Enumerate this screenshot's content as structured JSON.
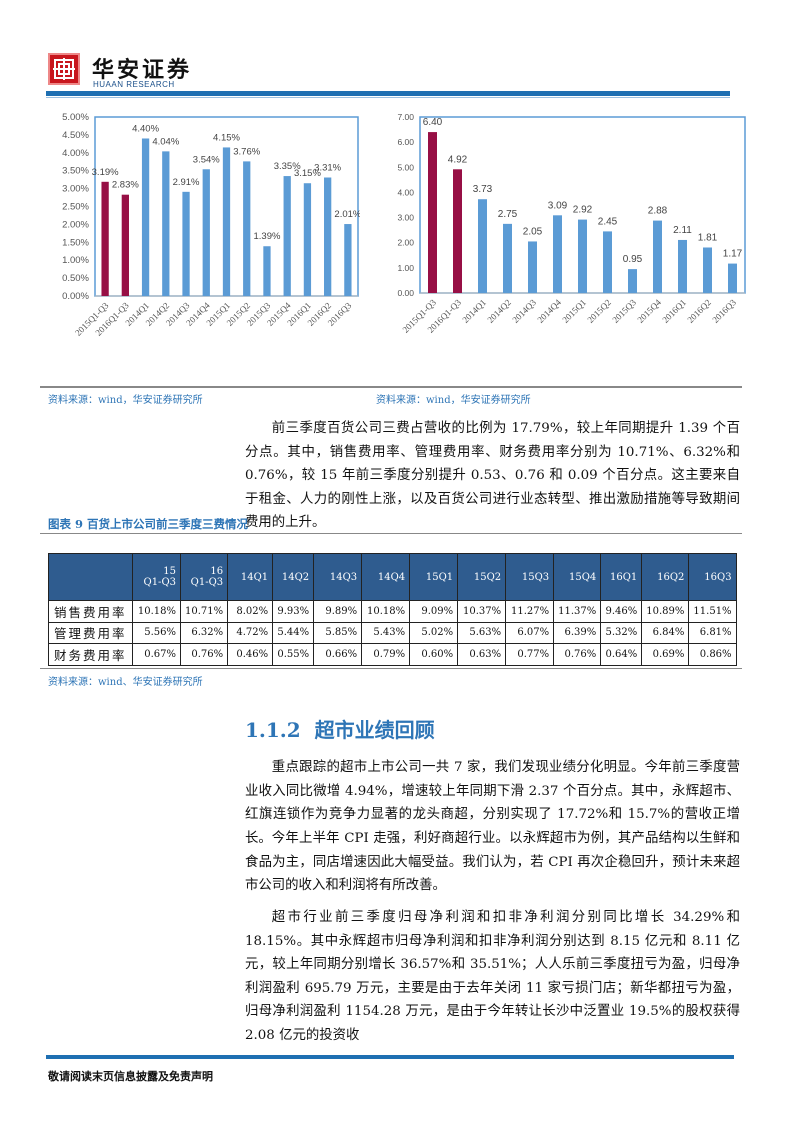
{
  "header": {
    "logo_cn": "华安证券",
    "logo_en": "HUAAN RESEARCH"
  },
  "chart_data": [
    {
      "type": "bar",
      "title": "",
      "ylabel": "",
      "xlabel": "",
      "ylim": [
        0,
        5
      ],
      "yticks": [
        "0.00%",
        "0.50%",
        "1.00%",
        "1.50%",
        "2.00%",
        "2.50%",
        "3.00%",
        "3.50%",
        "4.00%",
        "4.50%",
        "5.00%"
      ],
      "categories": [
        "2015Q1-Q3",
        "2016Q1-Q3",
        "2014Q1",
        "2014Q2",
        "2014Q3",
        "2014Q4",
        "2015Q1",
        "2015Q2",
        "2015Q3",
        "2015Q4",
        "2016Q1",
        "2016Q2",
        "2016Q3"
      ],
      "values": [
        3.19,
        2.83,
        4.4,
        4.04,
        2.91,
        3.54,
        4.15,
        3.76,
        1.39,
        3.35,
        3.15,
        3.31,
        2.01
      ],
      "labels": [
        "3.19%",
        "2.83%",
        "4.40%",
        "4.04%",
        "2.91%",
        "3.54%",
        "4.15%",
        "3.76%",
        "1.39%",
        "3.35%",
        "3.15%",
        "3.31%",
        "2.01%"
      ],
      "colors": [
        "#970f45",
        "#970f45",
        "#5b9bd5",
        "#5b9bd5",
        "#5b9bd5",
        "#5b9bd5",
        "#5b9bd5",
        "#5b9bd5",
        "#5b9bd5",
        "#5b9bd5",
        "#5b9bd5",
        "#5b9bd5",
        "#5b9bd5"
      ]
    },
    {
      "type": "bar",
      "title": "",
      "ylabel": "",
      "xlabel": "",
      "ylim": [
        0,
        7
      ],
      "yticks": [
        "0.00",
        "1.00",
        "2.00",
        "3.00",
        "4.00",
        "5.00",
        "6.00",
        "7.00"
      ],
      "categories": [
        "2015Q1-Q3",
        "2016Q1-Q3",
        "2014Q1",
        "2014Q2",
        "2014Q3",
        "2014Q4",
        "2015Q1",
        "2015Q2",
        "2015Q3",
        "2015Q4",
        "2016Q1",
        "2016Q2",
        "2016Q3"
      ],
      "values": [
        6.4,
        4.92,
        3.73,
        2.75,
        2.05,
        3.09,
        2.92,
        2.45,
        0.95,
        2.88,
        2.11,
        1.81,
        1.17
      ],
      "labels": [
        "6.40",
        "4.92",
        "3.73",
        "2.75",
        "2.05",
        "3.09",
        "2.92",
        "2.45",
        "0.95",
        "2.88",
        "2.11",
        "1.81",
        "1.17"
      ],
      "colors": [
        "#970f45",
        "#970f45",
        "#5b9bd5",
        "#5b9bd5",
        "#5b9bd5",
        "#5b9bd5",
        "#5b9bd5",
        "#5b9bd5",
        "#5b9bd5",
        "#5b9bd5",
        "#5b9bd5",
        "#5b9bd5",
        "#5b9bd5"
      ]
    }
  ],
  "sources": {
    "left": "资料来源：wind，华安证券研究所",
    "right": "资料来源：wind，华安证券研究所",
    "table": "资料来源：wind、华安证券研究所"
  },
  "para1": "前三季度百货公司三费占营收的比例为 17.79%，较上年同期提升 1.39 个百分点。其中，销售费用率、管理费用率、财务费用率分别为 10.71%、6.32%和 0.76%，较 15 年前三季度分别提升 0.53、0.76 和 0.09 个百分点。这主要来自于租金、人力的刚性上涨，以及百货公司进行业态转型、推出激励措施等导致期间费用的上升。",
  "table": {
    "title": "图表 9  百货上市公司前三季度三费情况",
    "headers": [
      "",
      "15 Q1-Q3",
      "16 Q1-Q3",
      "14Q1",
      "14Q2",
      "14Q3",
      "14Q4",
      "15Q1",
      "15Q2",
      "15Q3",
      "15Q4",
      "16Q1",
      "16Q2",
      "16Q3"
    ],
    "rows": [
      [
        "销售费用率",
        "10.18%",
        "10.71%",
        "8.02%",
        "9.93%",
        "9.89%",
        "10.18%",
        "9.09%",
        "10.37%",
        "11.27%",
        "11.37%",
        "9.46%",
        "10.89%",
        "11.51%"
      ],
      [
        "管理费用率",
        "5.56%",
        "6.32%",
        "4.72%",
        "5.44%",
        "5.85%",
        "5.43%",
        "5.02%",
        "5.63%",
        "6.07%",
        "6.39%",
        "5.32%",
        "6.84%",
        "6.81%"
      ],
      [
        "财务费用率",
        "0.67%",
        "0.76%",
        "0.46%",
        "0.55%",
        "0.66%",
        "0.79%",
        "0.60%",
        "0.63%",
        "0.77%",
        "0.76%",
        "0.64%",
        "0.69%",
        "0.86%"
      ]
    ]
  },
  "section": {
    "number": "1.1.2",
    "title": "超市业绩回顾"
  },
  "para2": "重点跟踪的超市上市公司一共 7 家，我们发现业绩分化明显。今年前三季度营业收入同比微增 4.94%，增速较上年同期下滑 2.37 个百分点。其中，永辉超市、红旗连锁作为竞争力显著的龙头商超，分别实现了 17.72%和 15.7%的营收正增长。",
  "para3": "今年上半年 CPI 走强，利好商超行业。以永辉超市为例，其产品结构以生鲜和食品为主，同店增速因此大幅受益。我们认为，若 CPI 再次企稳回升，预计未来超市公司的收入和利润将有所改善。",
  "para4": "超市行业前三季度归母净利润和扣非净利润分别同比增长 34.29%和 18.15%。其中永辉超市归母净利润和扣非净利润分别达到 8.15 亿元和 8.11 亿元，较上年同期分别增长 36.57%和 35.51%；人人乐前三季度扭亏为盈，归母净利润盈利 695.79 万元，主要是由于去年关闭 11 家亏损门店；新华都扭亏为盈，归母净利润盈利 1154.28 万元，是由于今年转让长沙中泛置业 19.5%的股权获得 2.08 亿元的投资收",
  "footer": "敬请阅读末页信息披露及免责声明"
}
